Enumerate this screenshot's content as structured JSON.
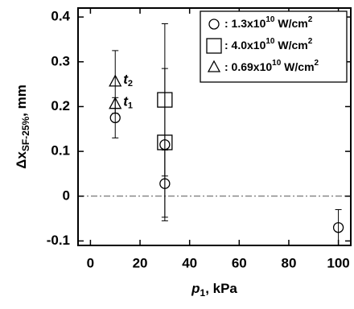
{
  "chart_data": {
    "type": "scatter",
    "xlabel": {
      "text": "p",
      "sub": "1",
      "rest": ", kPa"
    },
    "ylabel": {
      "text": "Δx",
      "sub": "SF-25%",
      "rest": ", mm"
    },
    "xlim": [
      -5,
      105
    ],
    "ylim": [
      -0.11,
      0.42
    ],
    "xticks": [
      0,
      20,
      40,
      60,
      80,
      100
    ],
    "yticks": [
      -0.1,
      0,
      0.1,
      0.2,
      0.3,
      0.4
    ],
    "hline": 0,
    "legend": "upper right",
    "color": "#000000",
    "series": [
      {
        "name": {
          "base": ": 1.3x10",
          "exp": "10",
          "unit": " W/cm",
          "unit_exp": "2"
        },
        "marker": "circle",
        "x": [
          10,
          30,
          30,
          100
        ],
        "values": [
          0.175,
          0.115,
          0.028,
          -0.07
        ],
        "errors": [
          0.045,
          0.17,
          0.075,
          0.04
        ]
      },
      {
        "name": {
          "base": ": 4.0x10",
          "exp": "10",
          "unit": " W/cm",
          "unit_exp": "2"
        },
        "marker": "square",
        "x": [
          30,
          30
        ],
        "values": [
          0.215,
          0.12
        ],
        "errors": [
          0.17,
          null
        ]
      },
      {
        "name": {
          "base": ": 0.69x10",
          "exp": "10",
          "unit": " W/cm",
          "unit_exp": "2"
        },
        "marker": "triangle",
        "x": [
          10,
          10
        ],
        "values": [
          0.205,
          0.255
        ],
        "errors": [
          null,
          0.07
        ]
      }
    ],
    "annotations": [
      {
        "text": "t",
        "sub": "1"
      },
      {
        "text": "t",
        "sub": "2"
      }
    ]
  }
}
